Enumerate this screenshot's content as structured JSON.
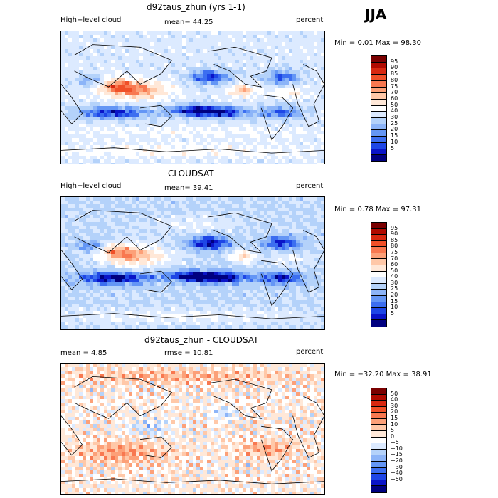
{
  "season": "JJA",
  "palette_cloud": [
    "#000080",
    "#0a14c8",
    "#1e46e6",
    "#3c6ef0",
    "#6496f5",
    "#8cb4f8",
    "#b4d2fa",
    "#dceaff",
    "#ffffff",
    "#ffe8d8",
    "#ffc8a8",
    "#fca078",
    "#f87850",
    "#f05028",
    "#d82810",
    "#b00a00",
    "#7a0000"
  ],
  "palette_diff": [
    "#000080",
    "#0a14c8",
    "#1e46e6",
    "#3c6ef0",
    "#6496f5",
    "#8cb4f8",
    "#b4d2fa",
    "#dceaff",
    "#ffffff",
    "#ffe8d8",
    "#ffc8a8",
    "#fca078",
    "#f87850",
    "#f05028",
    "#d82810",
    "#b00a00",
    "#7a0000"
  ],
  "chart_data": [
    {
      "type": "heatmap",
      "title": "d92taus_zhun (yrs 1-1)",
      "left_label": "High−level cloud",
      "stat_label": "mean=  44.25",
      "units": "percent",
      "min_max": "Min =    0.01  Max =   98.30",
      "field": "model",
      "colorbar_levels": [
        "95",
        "90",
        "85",
        "80",
        "75",
        "70",
        "60",
        "50",
        "40",
        "30",
        "25",
        "20",
        "15",
        "10",
        "5"
      ]
    },
    {
      "type": "heatmap",
      "title": "CLOUDSAT",
      "left_label": "High−level cloud",
      "stat_label": "mean=  39.41",
      "units": "percent",
      "min_max": "Min =    0.78  Max =   97.31",
      "field": "obs",
      "colorbar_levels": [
        "95",
        "90",
        "85",
        "80",
        "75",
        "70",
        "60",
        "50",
        "40",
        "30",
        "25",
        "20",
        "15",
        "10",
        "5"
      ]
    },
    {
      "type": "heatmap",
      "title": "d92taus_zhun - CLOUDSAT",
      "left_label": "mean =    4.85",
      "stat_label": "rmse =   10.81",
      "units": "percent",
      "min_max": "Min = −32.20  Max =   38.91",
      "field": "diff",
      "colorbar_levels": [
        "50",
        "40",
        "30",
        "20",
        "15",
        "10",
        "5",
        "0",
        "−5",
        "−10",
        "−15",
        "−20",
        "−30",
        "−40",
        "−50"
      ]
    }
  ]
}
